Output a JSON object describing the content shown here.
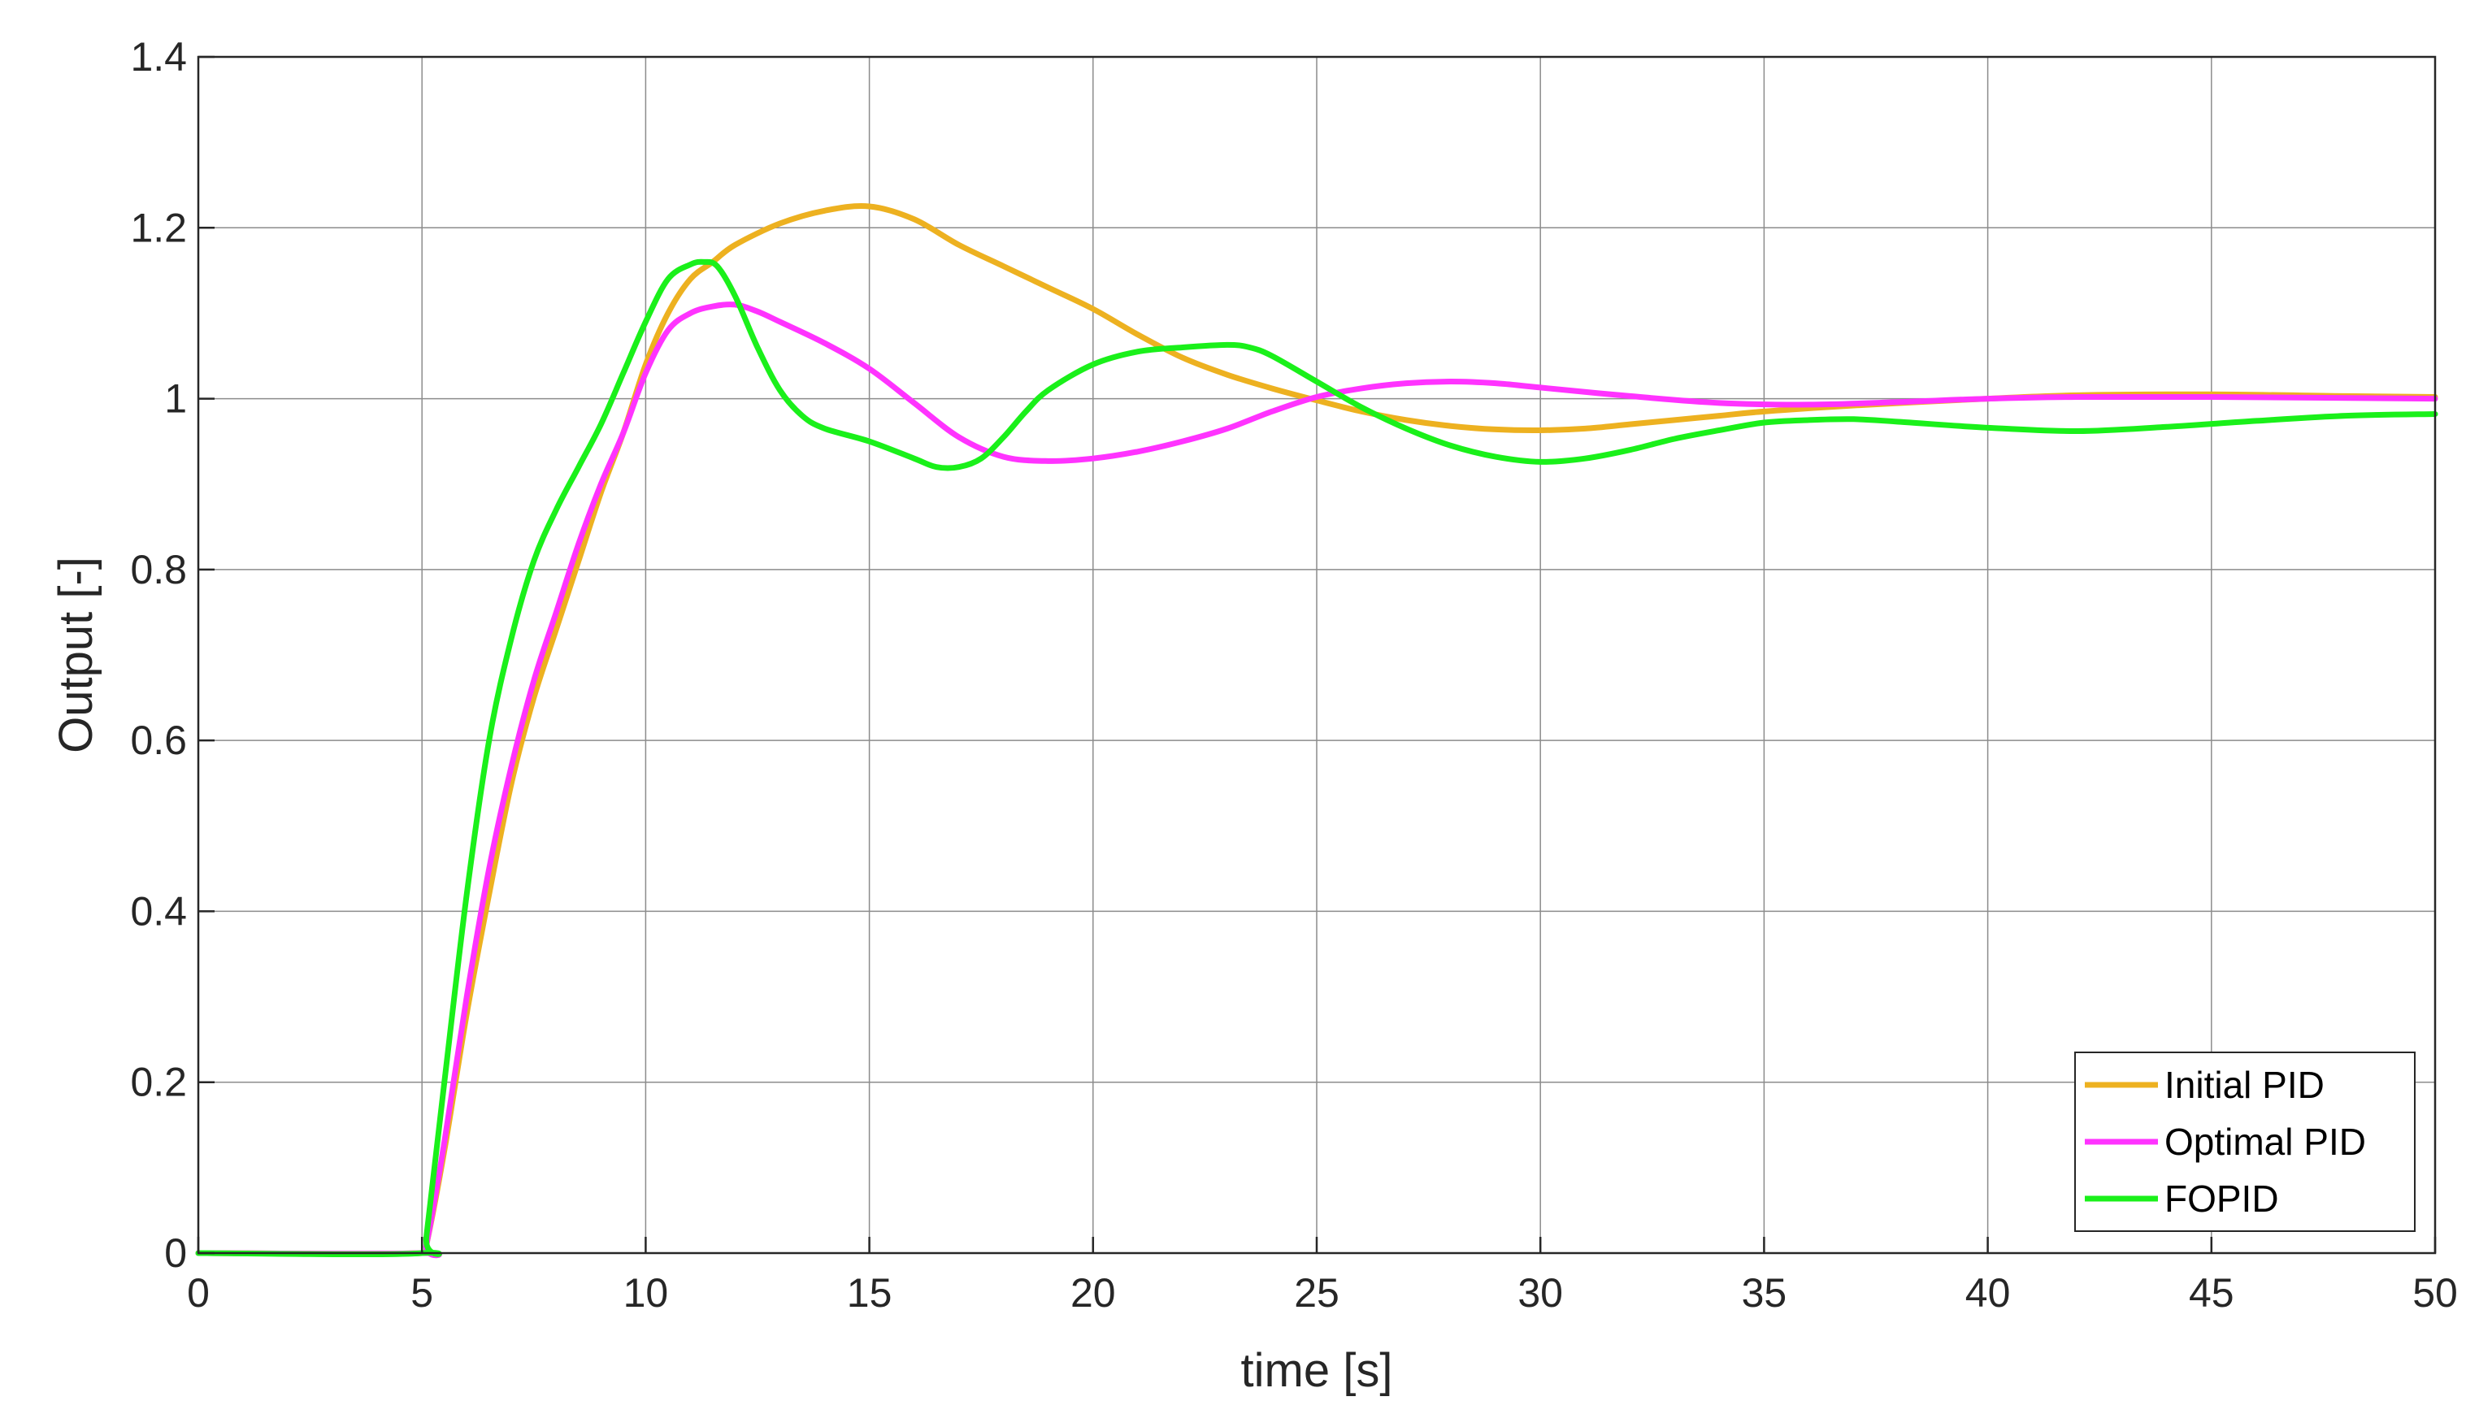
{
  "chart_data": {
    "type": "line",
    "title": "",
    "xlabel": "time [s]",
    "ylabel": "Output [-]",
    "xlim": [
      0,
      50
    ],
    "ylim": [
      0,
      1.4
    ],
    "xticks": [
      0,
      5,
      10,
      15,
      20,
      25,
      30,
      35,
      40,
      45,
      50
    ],
    "yticks": [
      0,
      0.2,
      0.4,
      0.6,
      0.8,
      1,
      1.2,
      1.4
    ],
    "grid": true,
    "legend_position": "bottom-right",
    "series": [
      {
        "name": "Initial PID",
        "color": "#EDB120",
        "x": [
          0,
          5,
          5.1,
          5.5,
          6,
          6.5,
          7,
          7.5,
          8,
          8.5,
          9,
          9.5,
          10,
          10.5,
          11,
          11.5,
          12,
          13,
          14,
          15,
          16,
          17,
          18,
          19,
          20,
          21,
          22,
          23,
          24,
          25,
          26,
          27,
          28,
          29,
          30,
          31,
          32,
          33,
          34,
          35,
          37,
          40,
          42,
          45,
          48,
          50
        ],
        "y": [
          0,
          0,
          0.01,
          0.12,
          0.28,
          0.42,
          0.55,
          0.65,
          0.73,
          0.81,
          0.89,
          0.96,
          1.04,
          1.1,
          1.14,
          1.16,
          1.18,
          1.205,
          1.22,
          1.225,
          1.21,
          1.18,
          1.155,
          1.13,
          1.105,
          1.075,
          1.048,
          1.028,
          1.012,
          0.998,
          0.985,
          0.975,
          0.968,
          0.964,
          0.963,
          0.965,
          0.97,
          0.975,
          0.98,
          0.985,
          0.992,
          1.0,
          1.004,
          1.005,
          1.003,
          1.002
        ]
      },
      {
        "name": "Optimal PID",
        "color": "#FF33FF",
        "x": [
          0,
          5,
          5.1,
          5.5,
          6,
          6.5,
          7,
          7.5,
          8,
          8.5,
          9,
          9.5,
          10,
          10.5,
          11,
          11.5,
          12,
          12.5,
          13,
          14,
          15,
          16,
          17,
          18,
          19,
          20,
          21,
          22,
          23,
          24,
          25,
          26,
          27,
          28,
          29,
          30,
          32,
          34,
          36,
          38,
          40,
          42,
          45,
          50
        ],
        "y": [
          0,
          0,
          0.01,
          0.13,
          0.3,
          0.45,
          0.57,
          0.67,
          0.75,
          0.83,
          0.9,
          0.96,
          1.03,
          1.08,
          1.1,
          1.108,
          1.11,
          1.102,
          1.09,
          1.065,
          1.035,
          0.995,
          0.955,
          0.932,
          0.927,
          0.93,
          0.938,
          0.95,
          0.965,
          0.985,
          1.002,
          1.012,
          1.018,
          1.02,
          1.018,
          1.013,
          1.003,
          0.995,
          0.993,
          0.996,
          1.0,
          1.002,
          1.002,
          1.0
        ]
      },
      {
        "name": "FOPID",
        "color": "#1AF01A",
        "x": [
          0,
          5,
          5.1,
          5.5,
          6,
          6.5,
          7,
          7.5,
          8,
          8.5,
          9,
          9.5,
          10,
          10.5,
          11,
          11.3,
          11.6,
          12,
          12.5,
          13,
          13.5,
          14,
          15,
          16,
          16.5,
          17,
          17.5,
          18,
          18.5,
          19,
          20,
          21,
          22,
          23,
          23.5,
          24,
          25,
          26,
          27,
          28,
          29,
          30,
          31,
          32,
          33,
          34,
          35,
          36,
          37,
          38,
          40,
          42,
          44,
          46,
          48,
          50
        ],
        "y": [
          0,
          0,
          0.02,
          0.2,
          0.42,
          0.6,
          0.72,
          0.81,
          0.87,
          0.92,
          0.97,
          1.03,
          1.09,
          1.14,
          1.157,
          1.16,
          1.155,
          1.12,
          1.06,
          1.01,
          0.98,
          0.965,
          0.95,
          0.93,
          0.92,
          0.92,
          0.93,
          0.955,
          0.985,
          1.01,
          1.04,
          1.055,
          1.06,
          1.063,
          1.06,
          1.05,
          1.02,
          0.99,
          0.965,
          0.945,
          0.932,
          0.926,
          0.93,
          0.94,
          0.953,
          0.963,
          0.972,
          0.975,
          0.976,
          0.973,
          0.966,
          0.962,
          0.967,
          0.974,
          0.98,
          0.982
        ]
      }
    ]
  }
}
